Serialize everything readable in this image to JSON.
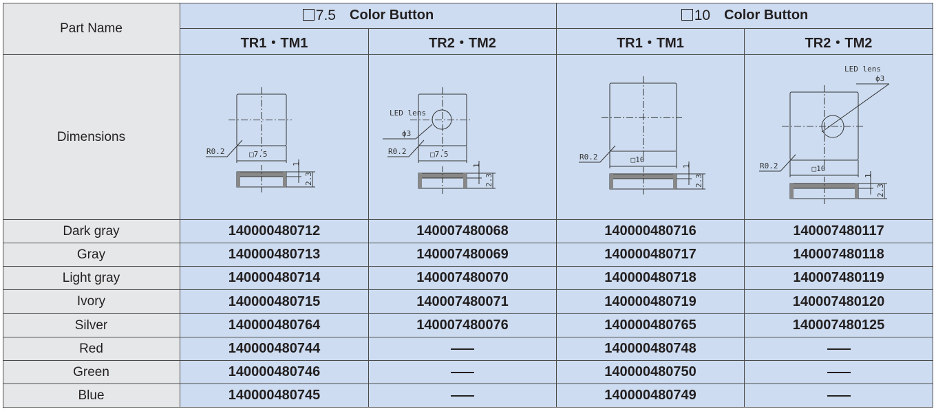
{
  "header": {
    "part_name": "Part Name",
    "groups": [
      {
        "size": "7.5",
        "label": "Color Button"
      },
      {
        "size": "10",
        "label": "Color Button"
      }
    ],
    "subheaders": [
      "TR1・TM1",
      "TR2・TM2",
      "TR1・TM1",
      "TR2・TM2"
    ]
  },
  "dimensions": {
    "label": "Dimensions",
    "drawings": [
      {
        "corner": "R0.2",
        "width": "□7.5",
        "top": "1",
        "height": "2.3"
      },
      {
        "corner": "R0.2",
        "width": "□7.5",
        "top": "1",
        "height": "2.3",
        "led": "LED lens",
        "dia": "ϕ3"
      },
      {
        "corner": "R0.2",
        "width": "□10",
        "top": "1",
        "height": "2.3"
      },
      {
        "corner": "R0.2",
        "width": "□10",
        "top": "1",
        "height": "2.3",
        "led": "LED lens",
        "dia": "ϕ3"
      }
    ]
  },
  "rows": [
    {
      "name": "Dark gray",
      "values": [
        "140000480712",
        "140007480068",
        "140000480716",
        "140007480117"
      ]
    },
    {
      "name": "Gray",
      "values": [
        "140000480713",
        "140007480069",
        "140000480717",
        "140007480118"
      ]
    },
    {
      "name": "Light gray",
      "values": [
        "140000480714",
        "140007480070",
        "140000480718",
        "140007480119"
      ]
    },
    {
      "name": "Ivory",
      "values": [
        "140000480715",
        "140007480071",
        "140000480719",
        "140007480120"
      ]
    },
    {
      "name": "Silver",
      "values": [
        "140000480764",
        "140007480076",
        "140000480765",
        "140007480125"
      ]
    },
    {
      "name": "Red",
      "values": [
        "140000480744",
        "—",
        "140000480748",
        "—"
      ]
    },
    {
      "name": "Green",
      "values": [
        "140000480746",
        "—",
        "140000480750",
        "—"
      ]
    },
    {
      "name": "Blue",
      "values": [
        "140000480745",
        "—",
        "140000480749",
        "—"
      ]
    }
  ],
  "colors": {
    "label_bg": "#e6e7e8",
    "cell_bg": "#cddcf0",
    "border": "#4a4a4a"
  }
}
